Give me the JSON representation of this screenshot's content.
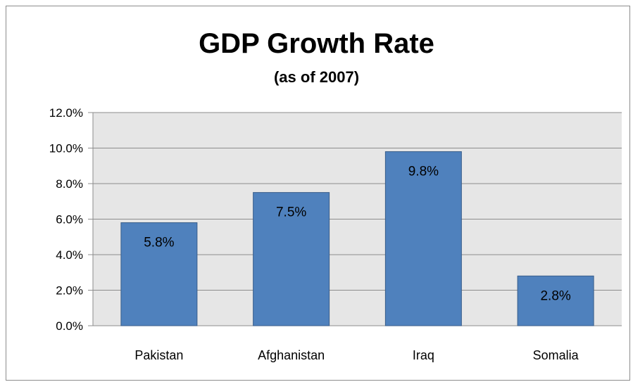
{
  "chart_data": {
    "type": "bar",
    "title": "GDP Growth Rate",
    "subtitle": "(as of 2007)",
    "categories": [
      "Pakistan",
      "Afghanistan",
      "Iraq",
      "Somalia"
    ],
    "values": [
      5.8,
      7.5,
      9.8,
      2.8
    ],
    "value_labels": [
      "5.8%",
      "7.5%",
      "9.8%",
      "2.8%"
    ],
    "ylim": [
      0,
      12
    ],
    "yticks": [
      0,
      2,
      4,
      6,
      8,
      10,
      12
    ],
    "ytick_labels": [
      "0.0%",
      "2.0%",
      "4.0%",
      "6.0%",
      "8.0%",
      "10.0%",
      "12.0%"
    ],
    "grid": true,
    "legend": "none",
    "colors": {
      "bar": "#4f81bd",
      "bar_border": "#385d8a",
      "plot_bg": "#e6e6e6",
      "grid": "#8c8c8c"
    }
  }
}
